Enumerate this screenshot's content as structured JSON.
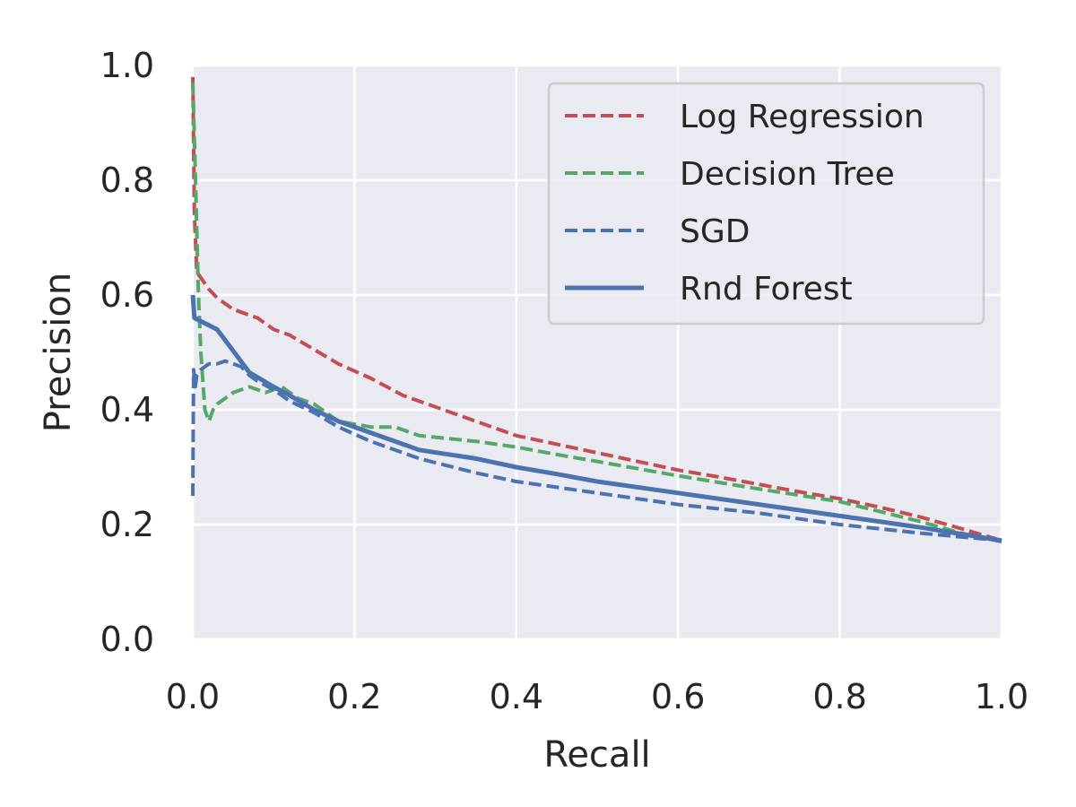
{
  "chart_data": {
    "type": "line",
    "title": "",
    "xlabel": "Recall",
    "ylabel": "Precision",
    "xlim": [
      0,
      1
    ],
    "ylim": [
      0,
      1
    ],
    "x_ticks": [
      "0.0",
      "0.2",
      "0.4",
      "0.6",
      "0.8",
      "1.0"
    ],
    "y_ticks": [
      "0.0",
      "0.2",
      "0.4",
      "0.6",
      "0.8",
      "1.0"
    ],
    "grid": true,
    "legend_position": "top-right",
    "colors": {
      "plot_background": "#EAEAF2",
      "grid": "#FFFFFF",
      "text": "#262626"
    },
    "series": [
      {
        "name": "Log Regression",
        "color": "#C44E52",
        "style": "dashed",
        "points": [
          [
            0.0,
            0.98
          ],
          [
            0.002,
            0.74
          ],
          [
            0.005,
            0.64
          ],
          [
            0.01,
            0.63
          ],
          [
            0.02,
            0.61
          ],
          [
            0.03,
            0.595
          ],
          [
            0.04,
            0.585
          ],
          [
            0.05,
            0.575
          ],
          [
            0.07,
            0.565
          ],
          [
            0.08,
            0.56
          ],
          [
            0.1,
            0.54
          ],
          [
            0.12,
            0.53
          ],
          [
            0.15,
            0.505
          ],
          [
            0.18,
            0.48
          ],
          [
            0.22,
            0.455
          ],
          [
            0.26,
            0.425
          ],
          [
            0.3,
            0.405
          ],
          [
            0.35,
            0.38
          ],
          [
            0.4,
            0.355
          ],
          [
            0.45,
            0.34
          ],
          [
            0.5,
            0.325
          ],
          [
            0.55,
            0.31
          ],
          [
            0.6,
            0.295
          ],
          [
            0.65,
            0.283
          ],
          [
            0.7,
            0.27
          ],
          [
            0.75,
            0.257
          ],
          [
            0.8,
            0.245
          ],
          [
            0.85,
            0.23
          ],
          [
            0.9,
            0.213
          ],
          [
            0.95,
            0.193
          ],
          [
            1.0,
            0.172
          ]
        ]
      },
      {
        "name": "Decision Tree",
        "color": "#55A868",
        "style": "dashed",
        "points": [
          [
            0.0,
            0.97
          ],
          [
            0.003,
            0.82
          ],
          [
            0.007,
            0.6
          ],
          [
            0.01,
            0.5
          ],
          [
            0.015,
            0.4
          ],
          [
            0.02,
            0.38
          ],
          [
            0.025,
            0.4
          ],
          [
            0.03,
            0.41
          ],
          [
            0.04,
            0.42
          ],
          [
            0.05,
            0.43
          ],
          [
            0.07,
            0.44
          ],
          [
            0.09,
            0.43
          ],
          [
            0.11,
            0.44
          ],
          [
            0.13,
            0.42
          ],
          [
            0.15,
            0.41
          ],
          [
            0.18,
            0.38
          ],
          [
            0.22,
            0.37
          ],
          [
            0.25,
            0.37
          ],
          [
            0.28,
            0.355
          ],
          [
            0.35,
            0.345
          ],
          [
            0.4,
            0.335
          ],
          [
            0.45,
            0.322
          ],
          [
            0.5,
            0.31
          ],
          [
            0.6,
            0.285
          ],
          [
            0.7,
            0.262
          ],
          [
            0.8,
            0.24
          ],
          [
            0.9,
            0.205
          ],
          [
            0.95,
            0.185
          ],
          [
            1.0,
            0.17
          ]
        ]
      },
      {
        "name": "SGD",
        "color": "#4C72B0",
        "style": "dashed",
        "points": [
          [
            0.0,
            0.25
          ],
          [
            0.001,
            0.47
          ],
          [
            0.003,
            0.44
          ],
          [
            0.005,
            0.46
          ],
          [
            0.01,
            0.47
          ],
          [
            0.015,
            0.475
          ],
          [
            0.02,
            0.48
          ],
          [
            0.03,
            0.48
          ],
          [
            0.04,
            0.485
          ],
          [
            0.05,
            0.48
          ],
          [
            0.06,
            0.475
          ],
          [
            0.07,
            0.46
          ],
          [
            0.08,
            0.45
          ],
          [
            0.1,
            0.435
          ],
          [
            0.12,
            0.415
          ],
          [
            0.15,
            0.395
          ],
          [
            0.18,
            0.37
          ],
          [
            0.22,
            0.345
          ],
          [
            0.28,
            0.315
          ],
          [
            0.35,
            0.29
          ],
          [
            0.4,
            0.275
          ],
          [
            0.5,
            0.255
          ],
          [
            0.6,
            0.235
          ],
          [
            0.7,
            0.22
          ],
          [
            0.8,
            0.2
          ],
          [
            0.9,
            0.185
          ],
          [
            1.0,
            0.172
          ]
        ]
      },
      {
        "name": "Rnd Forest",
        "color": "#4C72B0",
        "style": "solid",
        "points": [
          [
            0.0,
            0.6
          ],
          [
            0.002,
            0.56
          ],
          [
            0.03,
            0.54
          ],
          [
            0.07,
            0.465
          ],
          [
            0.1,
            0.44
          ],
          [
            0.12,
            0.425
          ],
          [
            0.15,
            0.4
          ],
          [
            0.18,
            0.38
          ],
          [
            0.22,
            0.36
          ],
          [
            0.28,
            0.33
          ],
          [
            0.35,
            0.315
          ],
          [
            0.4,
            0.3
          ],
          [
            0.45,
            0.288
          ],
          [
            0.5,
            0.275
          ],
          [
            0.6,
            0.255
          ],
          [
            0.7,
            0.235
          ],
          [
            0.8,
            0.215
          ],
          [
            0.9,
            0.195
          ],
          [
            1.0,
            0.172
          ]
        ]
      }
    ]
  }
}
